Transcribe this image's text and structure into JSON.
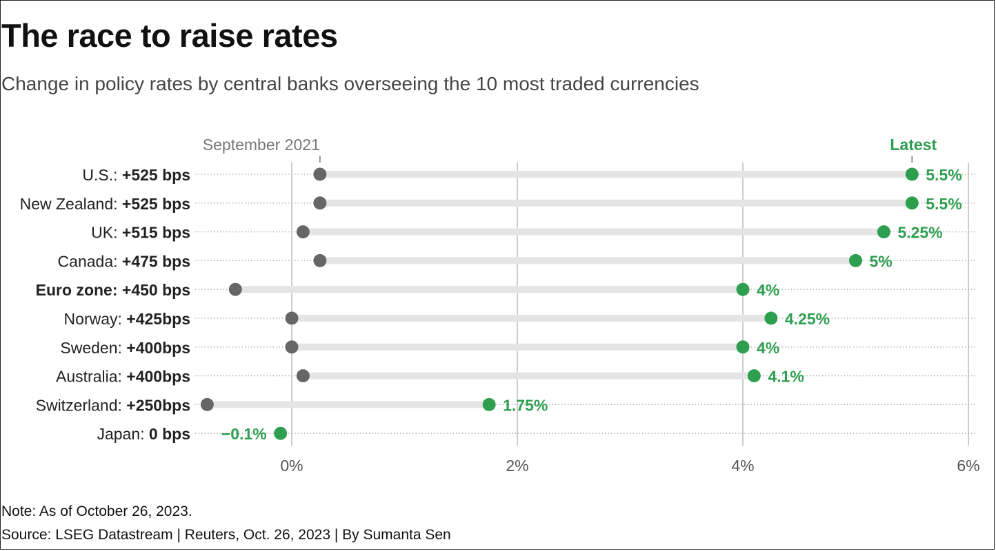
{
  "header": {
    "title": "The race to raise rates",
    "subtitle": "Change in policy rates by central banks overseeing the 10 most traded currencies"
  },
  "footer": {
    "note": "Note: As of October 26, 2023.",
    "source": "Source: LSEG Datastream | Reuters, Oct. 26, 2023 | By Sumanta Sen"
  },
  "colors": {
    "start": "#666666",
    "latest": "#2e9e4f",
    "track": "#e4e4e4",
    "grid": "#bbbbbb"
  },
  "chart_data": {
    "type": "dumbbell",
    "title": "The race to raise rates",
    "start_label": "September 2021",
    "end_label": "Latest",
    "xlim": [
      -0.8,
      6.0
    ],
    "xticks": [
      {
        "value": 0,
        "label": "0%"
      },
      {
        "value": 2,
        "label": "2%"
      },
      {
        "value": 4,
        "label": "4%"
      },
      {
        "value": 6,
        "label": "6%"
      }
    ],
    "rows": [
      {
        "country": "U.S.:",
        "change": "+525 bps",
        "start": 0.25,
        "latest": 5.5,
        "latest_label": "5.5%",
        "bold_country": false
      },
      {
        "country": "New Zealand:",
        "change": "+525 bps",
        "start": 0.25,
        "latest": 5.5,
        "latest_label": "5.5%",
        "bold_country": false
      },
      {
        "country": "UK:",
        "change": "+515 bps",
        "start": 0.1,
        "latest": 5.25,
        "latest_label": "5.25%",
        "bold_country": false
      },
      {
        "country": "Canada:",
        "change": "+475 bps",
        "start": 0.25,
        "latest": 5.0,
        "latest_label": "5%",
        "bold_country": false
      },
      {
        "country": "Euro zone:",
        "change": "+450 bps",
        "start": -0.5,
        "latest": 4.0,
        "latest_label": "4%",
        "bold_country": true
      },
      {
        "country": "Norway:",
        "change": "+425bps",
        "start": 0.0,
        "latest": 4.25,
        "latest_label": "4.25%",
        "bold_country": false
      },
      {
        "country": "Sweden:",
        "change": "+400bps",
        "start": 0.0,
        "latest": 4.0,
        "latest_label": "4%",
        "bold_country": false
      },
      {
        "country": "Australia:",
        "change": "+400bps",
        "start": 0.1,
        "latest": 4.1,
        "latest_label": "4.1%",
        "bold_country": false
      },
      {
        "country": "Switzerland:",
        "change": "+250bps",
        "start": -0.75,
        "latest": 1.75,
        "latest_label": "1.75%",
        "bold_country": false
      },
      {
        "country": "Japan:",
        "change": "0 bps",
        "start": -0.1,
        "latest": -0.1,
        "latest_label": "−0.1%",
        "bold_country": false
      }
    ]
  }
}
